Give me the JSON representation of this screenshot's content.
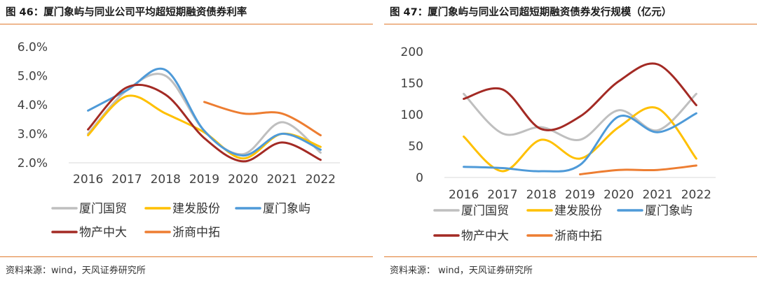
{
  "charts": [
    {
      "title": "图 46：厦门象屿与同业公司平均超短期融资债券利率",
      "source": "资料来源：wind，天风证券研究所"
    },
    {
      "title": "图 47：厦门象屿与同业公司超短期融资债券发行规模（亿元）",
      "source": "资料来源：   wind，天风证券研究所"
    }
  ],
  "chart_data": [
    {
      "type": "line",
      "title": "图 46：厦门象屿与同业公司平均超短期融资债券利率",
      "xlabel": "",
      "ylabel": "",
      "x": [
        "2016",
        "2017",
        "2018",
        "2019",
        "2020",
        "2021",
        "2022"
      ],
      "ylim": [
        2.0,
        6.0
      ],
      "yticks": [
        "2.0%",
        "3.0%",
        "4.0%",
        "5.0%",
        "6.0%"
      ],
      "grid": false,
      "legend": "bottom",
      "series": [
        {
          "name": "厦门国贸",
          "color": "#bfbfbf",
          "values": [
            3.0,
            4.5,
            5.0,
            3.1,
            2.3,
            3.4,
            2.35
          ]
        },
        {
          "name": "建发股份",
          "color": "#ffc000",
          "values": [
            2.95,
            4.3,
            3.7,
            3.05,
            2.15,
            3.0,
            2.55
          ]
        },
        {
          "name": "厦门象屿",
          "color": "#4e9ad8",
          "values": [
            3.8,
            4.5,
            5.2,
            3.1,
            2.25,
            3.0,
            2.45
          ]
        },
        {
          "name": "物产中大",
          "color": "#a32a24",
          "values": [
            3.15,
            4.6,
            4.35,
            2.85,
            2.05,
            2.7,
            2.1
          ]
        },
        {
          "name": "浙商中拓",
          "color": "#ed7d31",
          "values": [
            null,
            null,
            null,
            4.1,
            3.7,
            3.7,
            2.95
          ]
        }
      ]
    },
    {
      "type": "line",
      "title": "图 47：厦门象屿与同业公司超短期融资债券发行规模（亿元）",
      "xlabel": "",
      "ylabel": "",
      "x": [
        "2016",
        "2017",
        "2018",
        "2019",
        "2020",
        "2021",
        "2022"
      ],
      "ylim": [
        0,
        200
      ],
      "yticks": [
        "0",
        "50",
        "100",
        "150",
        "200"
      ],
      "grid": false,
      "legend": "bottom",
      "series": [
        {
          "name": "厦门国贸",
          "color": "#bfbfbf",
          "values": [
            133,
            70,
            80,
            60,
            107,
            75,
            133
          ]
        },
        {
          "name": "建发股份",
          "color": "#ffc000",
          "values": [
            65,
            10,
            60,
            30,
            80,
            110,
            30
          ]
        },
        {
          "name": "厦门象屿",
          "color": "#4e9ad8",
          "values": [
            17,
            15,
            10,
            20,
            97,
            72,
            102
          ]
        },
        {
          "name": "物产中大",
          "color": "#a32a24",
          "values": [
            125,
            140,
            77,
            97,
            153,
            180,
            115
          ]
        },
        {
          "name": "浙商中拓",
          "color": "#ed7d31",
          "values": [
            null,
            null,
            null,
            5,
            12,
            12,
            19
          ]
        }
      ]
    }
  ]
}
